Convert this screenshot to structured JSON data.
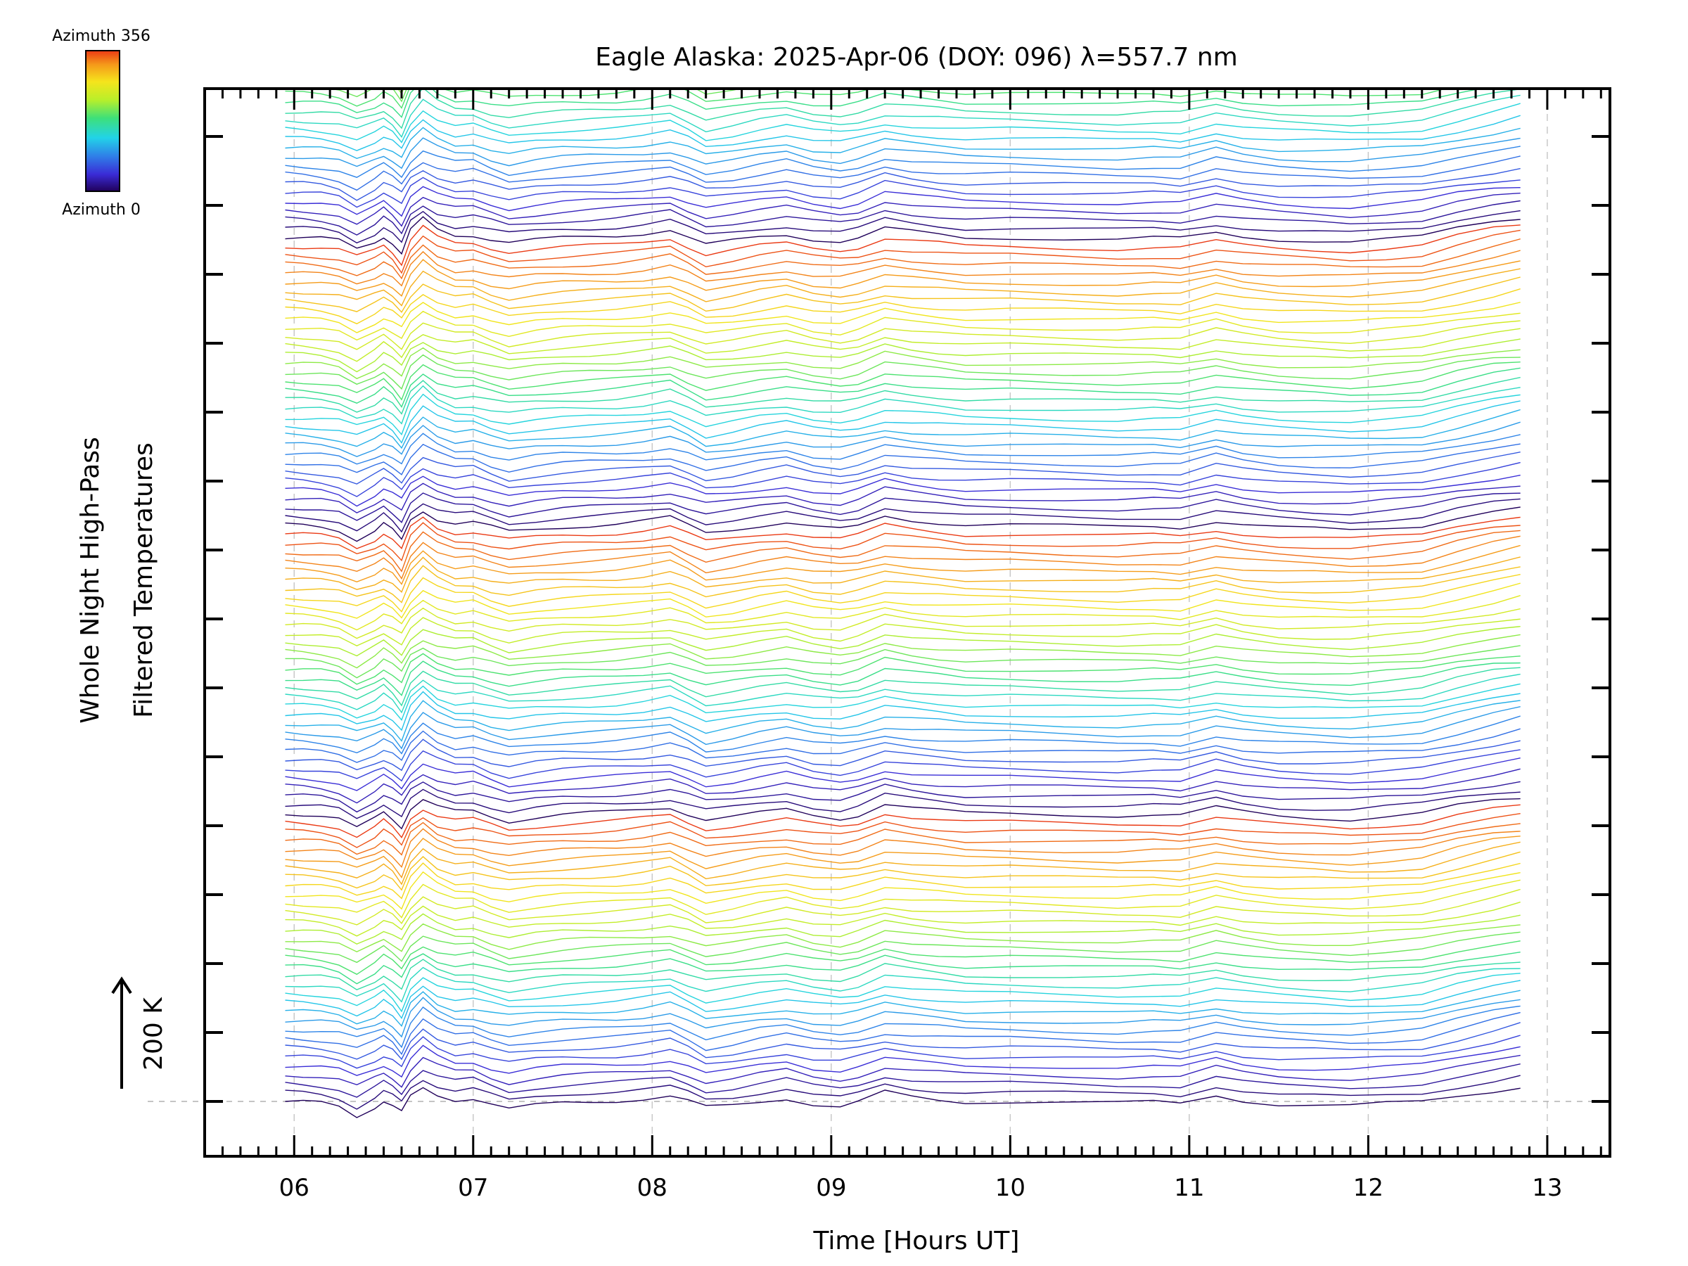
{
  "chart_data": {
    "type": "line",
    "title": "Eagle Alaska: 2025-Apr-06 (DOY: 096) λ=557.7 nm",
    "xlabel": "Time [Hours UT]",
    "ylabel_line1": "Whole Night High-Pass",
    "ylabel_line2": "Filtered Temperatures",
    "scale_label": "200 K",
    "xlim": [
      5.5,
      13.35
    ],
    "x_ticks": [
      6,
      7,
      8,
      9,
      10,
      11,
      12,
      13
    ],
    "x_tick_labels": [
      "06",
      "07",
      "08",
      "09",
      "10",
      "11",
      "12",
      "13"
    ],
    "grid": "dashed vertical at each hour",
    "colorbar": {
      "position": "top-left",
      "top_label": "Azimuth 356",
      "bottom_label": "Azimuth 0",
      "azimuth_range": [
        0,
        356
      ],
      "colormap": [
        "#20005a",
        "#3a2bd6",
        "#2f7fe8",
        "#22d3e8",
        "#3de07a",
        "#b9ef2a",
        "#f5e41c",
        "#f59a1a",
        "#ea3a14"
      ]
    },
    "x": [
      5.95,
      6.05,
      6.15,
      6.25,
      6.35,
      6.45,
      6.5,
      6.55,
      6.6,
      6.65,
      6.72,
      6.8,
      6.9,
      7.0,
      7.1,
      7.2,
      7.35,
      7.5,
      7.65,
      7.8,
      7.95,
      8.1,
      8.2,
      8.3,
      8.45,
      8.6,
      8.75,
      8.9,
      9.05,
      9.15,
      9.3,
      9.45,
      9.6,
      9.75,
      10.0,
      10.3,
      10.6,
      10.8,
      10.95,
      11.15,
      11.3,
      11.5,
      11.7,
      11.9,
      12.1,
      12.3,
      12.5,
      12.7,
      12.85
    ],
    "base_profile_K": [
      0,
      -1,
      -3,
      -8,
      -22,
      -8,
      2,
      -8,
      -24,
      10,
      30,
      14,
      4,
      6,
      -4,
      -12,
      -6,
      -2,
      0,
      2,
      6,
      12,
      0,
      -14,
      -8,
      0,
      6,
      -4,
      -8,
      -2,
      14,
      8,
      4,
      0,
      0,
      -2,
      -4,
      -2,
      -4,
      10,
      2,
      -4,
      -6,
      -8,
      -4,
      0,
      14,
      26,
      34
    ],
    "azimuth_cycle_period": 32,
    "n_series": 144,
    "series_offset_K": 16,
    "series_azimuth_range": [
      0,
      356
    ]
  }
}
